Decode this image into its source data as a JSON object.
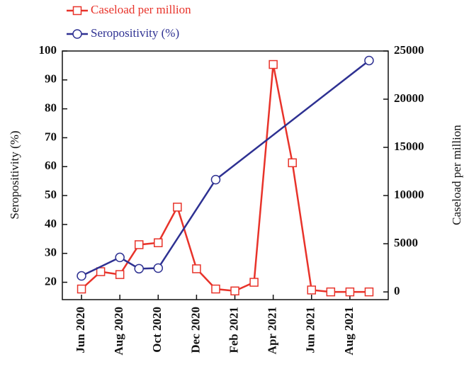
{
  "chart_data": {
    "type": "line",
    "y_label": "Seropositivity (%)",
    "y2_label": "Caseload per million",
    "xlim": [
      "May 2020",
      "Oct 2021"
    ],
    "xticks": [
      "Jun 2020",
      "Aug 2020",
      "Oct 2020",
      "Dec 2020",
      "Feb 2021",
      "Apr 2021",
      "Jun 2021",
      "Aug 2021"
    ],
    "ylim": [
      14,
      100
    ],
    "yticks": [
      20,
      30,
      40,
      50,
      60,
      70,
      80,
      90,
      100
    ],
    "y2lim": [
      -800,
      25000
    ],
    "y2ticks": [
      0,
      5000,
      10000,
      15000,
      20000,
      25000
    ],
    "series": [
      {
        "name": "Caseload per million",
        "color": "#e8332a",
        "marker": "square",
        "axis": "y2",
        "x": [
          "Jun 2020",
          "Jul 2020",
          "Aug 2020",
          "Sep 2020",
          "Oct 2020",
          "Nov 2020",
          "Dec 2020",
          "Jan 2021",
          "Feb 2021",
          "Mar 2021",
          "Apr 2021",
          "May 2021",
          "Jun 2021",
          "Jul 2021",
          "Aug 2021",
          "Sep 2021"
        ],
        "values": [
          300,
          2100,
          1800,
          4900,
          5100,
          8800,
          2400,
          300,
          100,
          1000,
          23600,
          13400,
          200,
          0,
          0,
          0
        ]
      },
      {
        "name": "Seropositivity (%)",
        "color": "#2e3192",
        "marker": "circle",
        "axis": "y",
        "x": [
          "Jun 2020",
          "Aug 2020",
          "Sep 2020",
          "Oct 2020",
          "Jan 2021",
          "Sep 2021"
        ],
        "values": [
          22.2,
          28.6,
          24.7,
          24.9,
          55.5,
          96.7
        ]
      }
    ]
  }
}
